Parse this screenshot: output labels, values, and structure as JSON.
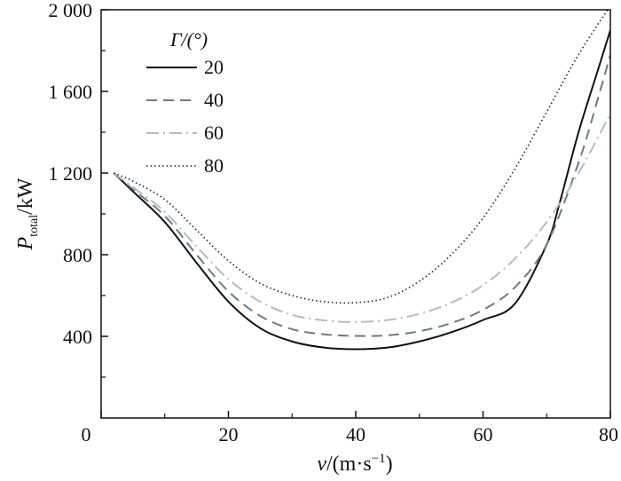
{
  "chart_data": {
    "type": "line",
    "title": "",
    "xlabel": {
      "var": "v",
      "unit": "/(m·s",
      "sup": "−1",
      "close": ")"
    },
    "ylabel": {
      "var": "P",
      "sub": "total",
      "unit": "/kW"
    },
    "xlim": [
      0,
      80
    ],
    "ylim": [
      0,
      2000
    ],
    "xticks": [
      0,
      20,
      40,
      60,
      80
    ],
    "xtick_labels": [
      "0",
      "20",
      "40",
      "60",
      "80"
    ],
    "yticks": [
      400,
      800,
      1200,
      1600,
      2000
    ],
    "ytick_labels": [
      "400",
      "800",
      "1 200",
      "1 600",
      "2 000"
    ],
    "grid": false,
    "legend": {
      "title": "Γ/(°)",
      "placement": "top-left"
    },
    "series": [
      {
        "name": "20",
        "color": "#111111",
        "style": "solid",
        "x": [
          2,
          5,
          10,
          15,
          20,
          25,
          30,
          35,
          40,
          45,
          50,
          55,
          60,
          65,
          70,
          72,
          75,
          78,
          80
        ],
        "y": [
          1200,
          1110,
          960,
          760,
          570,
          440,
          375,
          345,
          337,
          345,
          375,
          420,
          480,
          560,
          850,
          1050,
          1400,
          1700,
          1900
        ]
      },
      {
        "name": "40",
        "color": "#707a80",
        "style": "dashed",
        "x": [
          2,
          5,
          10,
          15,
          20,
          25,
          30,
          35,
          40,
          45,
          50,
          55,
          60,
          65,
          70,
          75,
          78,
          80
        ],
        "y": [
          1200,
          1120,
          990,
          800,
          620,
          500,
          435,
          410,
          402,
          405,
          425,
          465,
          530,
          640,
          850,
          1250,
          1560,
          1780
        ]
      },
      {
        "name": "60",
        "color": "#b4bbbd",
        "style": "dashdot",
        "x": [
          2,
          5,
          10,
          15,
          20,
          25,
          30,
          35,
          40,
          45,
          50,
          55,
          60,
          65,
          70,
          75,
          80
        ],
        "y": [
          1200,
          1130,
          1010,
          840,
          680,
          570,
          505,
          478,
          470,
          480,
          510,
          565,
          650,
          780,
          960,
          1200,
          1490
        ]
      },
      {
        "name": "80",
        "color": "#222222",
        "style": "dotted",
        "x": [
          2,
          5,
          10,
          15,
          20,
          25,
          30,
          35,
          40,
          45,
          50,
          55,
          60,
          65,
          70,
          75,
          80
        ],
        "y": [
          1200,
          1160,
          1070,
          920,
          770,
          660,
          600,
          570,
          565,
          590,
          670,
          800,
          980,
          1220,
          1500,
          1780,
          2020
        ]
      }
    ]
  }
}
